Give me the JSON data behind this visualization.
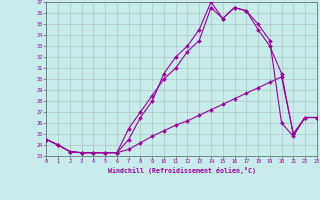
{
  "xlabel": "Windchill (Refroidissement éolien,°C)",
  "background_color": "#c8ecec",
  "line_color": "#990099",
  "grid_color": "#aabbbb",
  "xlim": [
    0,
    23
  ],
  "ylim": [
    23,
    37
  ],
  "xticks": [
    0,
    1,
    2,
    3,
    4,
    5,
    6,
    7,
    8,
    9,
    10,
    11,
    12,
    13,
    14,
    15,
    16,
    17,
    18,
    19,
    20,
    21,
    22,
    23
  ],
  "yticks": [
    23,
    24,
    25,
    26,
    27,
    28,
    29,
    30,
    31,
    32,
    33,
    34,
    35,
    36,
    37
  ],
  "s1_x": [
    0,
    1,
    2,
    3,
    4,
    5,
    6,
    7,
    8,
    9,
    10,
    11,
    12,
    13,
    14,
    15,
    16,
    17,
    18,
    19,
    20,
    21,
    22,
    23
  ],
  "s1_y": [
    24.5,
    24.0,
    23.4,
    23.3,
    23.3,
    23.3,
    23.3,
    24.5,
    26.5,
    28.0,
    30.5,
    32.0,
    33.0,
    34.5,
    37.0,
    35.5,
    36.5,
    36.2,
    35.0,
    33.5,
    26.0,
    24.8,
    26.5,
    26.5
  ],
  "s2_x": [
    0,
    1,
    2,
    3,
    4,
    5,
    6,
    7,
    8,
    9,
    10,
    11,
    12,
    13,
    14,
    15,
    16,
    17,
    18,
    19,
    20,
    21,
    22,
    23
  ],
  "s2_y": [
    24.5,
    24.0,
    23.4,
    23.3,
    23.3,
    23.3,
    23.3,
    25.5,
    27.0,
    28.5,
    30.0,
    31.0,
    32.5,
    33.5,
    36.5,
    35.5,
    36.5,
    36.2,
    34.5,
    33.0,
    30.5,
    25.0,
    26.5,
    26.5
  ],
  "s3_x": [
    0,
    1,
    2,
    3,
    4,
    5,
    6,
    7,
    8,
    9,
    10,
    11,
    12,
    13,
    14,
    15,
    16,
    17,
    18,
    19,
    20,
    21,
    22,
    23
  ],
  "s3_y": [
    24.5,
    24.0,
    23.4,
    23.3,
    23.3,
    23.3,
    23.3,
    23.6,
    24.2,
    24.8,
    25.3,
    25.8,
    26.2,
    26.7,
    27.2,
    27.7,
    28.2,
    28.7,
    29.2,
    29.7,
    30.2,
    25.0,
    26.5,
    26.5
  ]
}
